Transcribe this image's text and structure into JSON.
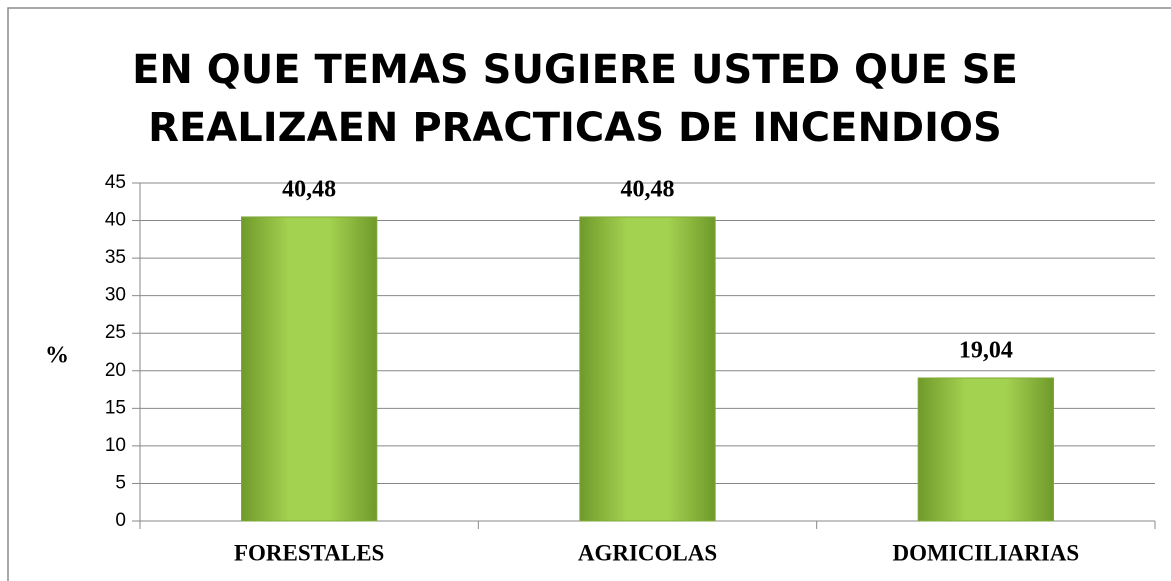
{
  "chart_data": {
    "type": "bar",
    "title": [
      "EN QUE TEMAS SUGIERE USTED QUE SE",
      "REALIZAEN PRACTICAS DE INCENDIOS"
    ],
    "ylabel": "%",
    "categories": [
      "FORESTALES",
      "AGRICOLAS",
      "DOMICILIARIAS"
    ],
    "values": [
      40.48,
      40.48,
      19.04
    ],
    "value_labels": [
      "40,48",
      "40,48",
      "19,04"
    ],
    "color": "#9bc84a",
    "ylim": [
      0,
      45
    ],
    "yticks": [
      0,
      5,
      10,
      15,
      20,
      25,
      30,
      35,
      40,
      45
    ],
    "grid": true
  }
}
